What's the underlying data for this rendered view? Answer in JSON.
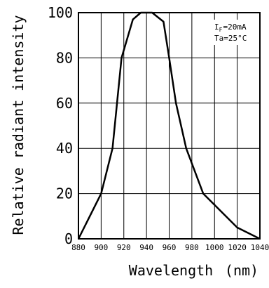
{
  "chart_data": {
    "type": "line",
    "title": "",
    "xlabel": "Wavelength",
    "xlabel_unit": "(nm)",
    "ylabel": "Relative radiant intensity",
    "xlim": [
      880,
      1040
    ],
    "ylim": [
      0,
      100
    ],
    "x_ticks": [
      "880",
      "900",
      "920",
      "940",
      "960",
      "980",
      "1000",
      "1020",
      "1040"
    ],
    "y_ticks": [
      "0",
      "20",
      "40",
      "60",
      "80",
      "100"
    ],
    "grid": true,
    "legend": "none",
    "conditions": {
      "if_label": "I",
      "if_sub": "F",
      "if_value": "=20mA",
      "ta": "Ta=25°C"
    },
    "series": [
      {
        "x": [
          880,
          900,
          910,
          918,
          928,
          935,
          945,
          955,
          960,
          966,
          975,
          990,
          1020,
          1040
        ],
        "y": [
          0,
          20,
          40,
          80,
          97,
          100,
          100,
          96,
          80,
          60,
          40,
          20,
          5,
          0
        ]
      }
    ]
  }
}
